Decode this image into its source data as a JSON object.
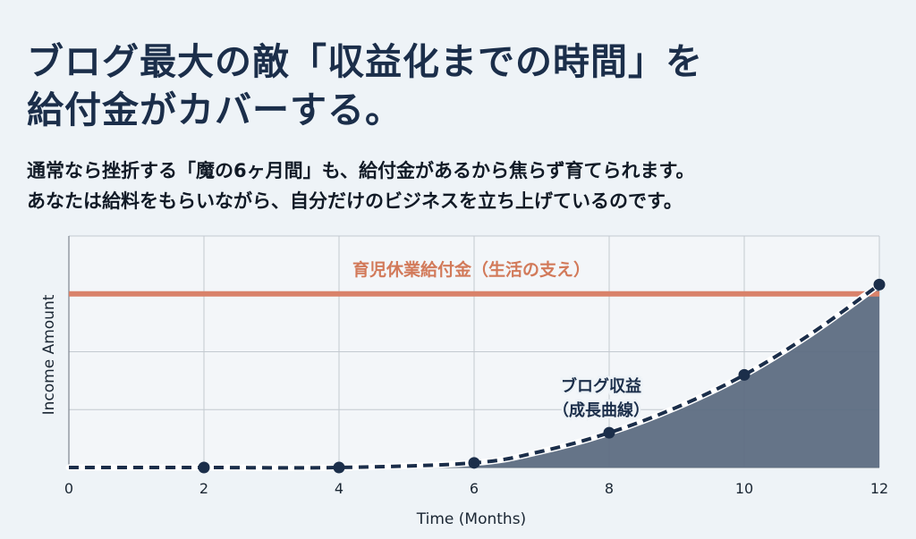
{
  "header": {
    "title_lines": [
      "ブログ最大の敵「収益化までの時間」を",
      "給付金がカバーする。"
    ],
    "subtitle_lines": [
      "通常なら挫折する「魔の6ヶ月間」も、給付金があるから焦らず育てられます。",
      "あなたは給料をもらいながら、自分だけのビジネスを立ち上げているのです。"
    ]
  },
  "chart_data": {
    "type": "line",
    "xlabel": "Time (Months)",
    "ylabel": "Income Amount",
    "xlim": [
      0,
      12
    ],
    "ylim": [
      0,
      100
    ],
    "x_ticks": [
      0,
      2,
      4,
      6,
      8,
      10,
      12
    ],
    "grid": true,
    "series": [
      {
        "name": "育児休業給付金（生活の支え）",
        "style": "solid",
        "color": "#d9826a",
        "x": [
          0,
          12
        ],
        "y": [
          75,
          75
        ]
      },
      {
        "name": "ブログ収益（成長曲線）",
        "style": "dashed",
        "color": "#1b2e4a",
        "fill": "#5d6d82",
        "markers_x": [
          2,
          4,
          6,
          8,
          10,
          12
        ],
        "x": [
          0,
          2,
          4,
          6,
          7,
          8,
          9,
          10,
          11,
          12
        ],
        "y": [
          0,
          0,
          0,
          2,
          7,
          15,
          26,
          40,
          58,
          79
        ]
      }
    ],
    "annotations": {
      "support": "育児休業給付金（生活の支え）",
      "blog_line1": "ブログ収益",
      "blog_line2": "（成長曲線）"
    }
  }
}
